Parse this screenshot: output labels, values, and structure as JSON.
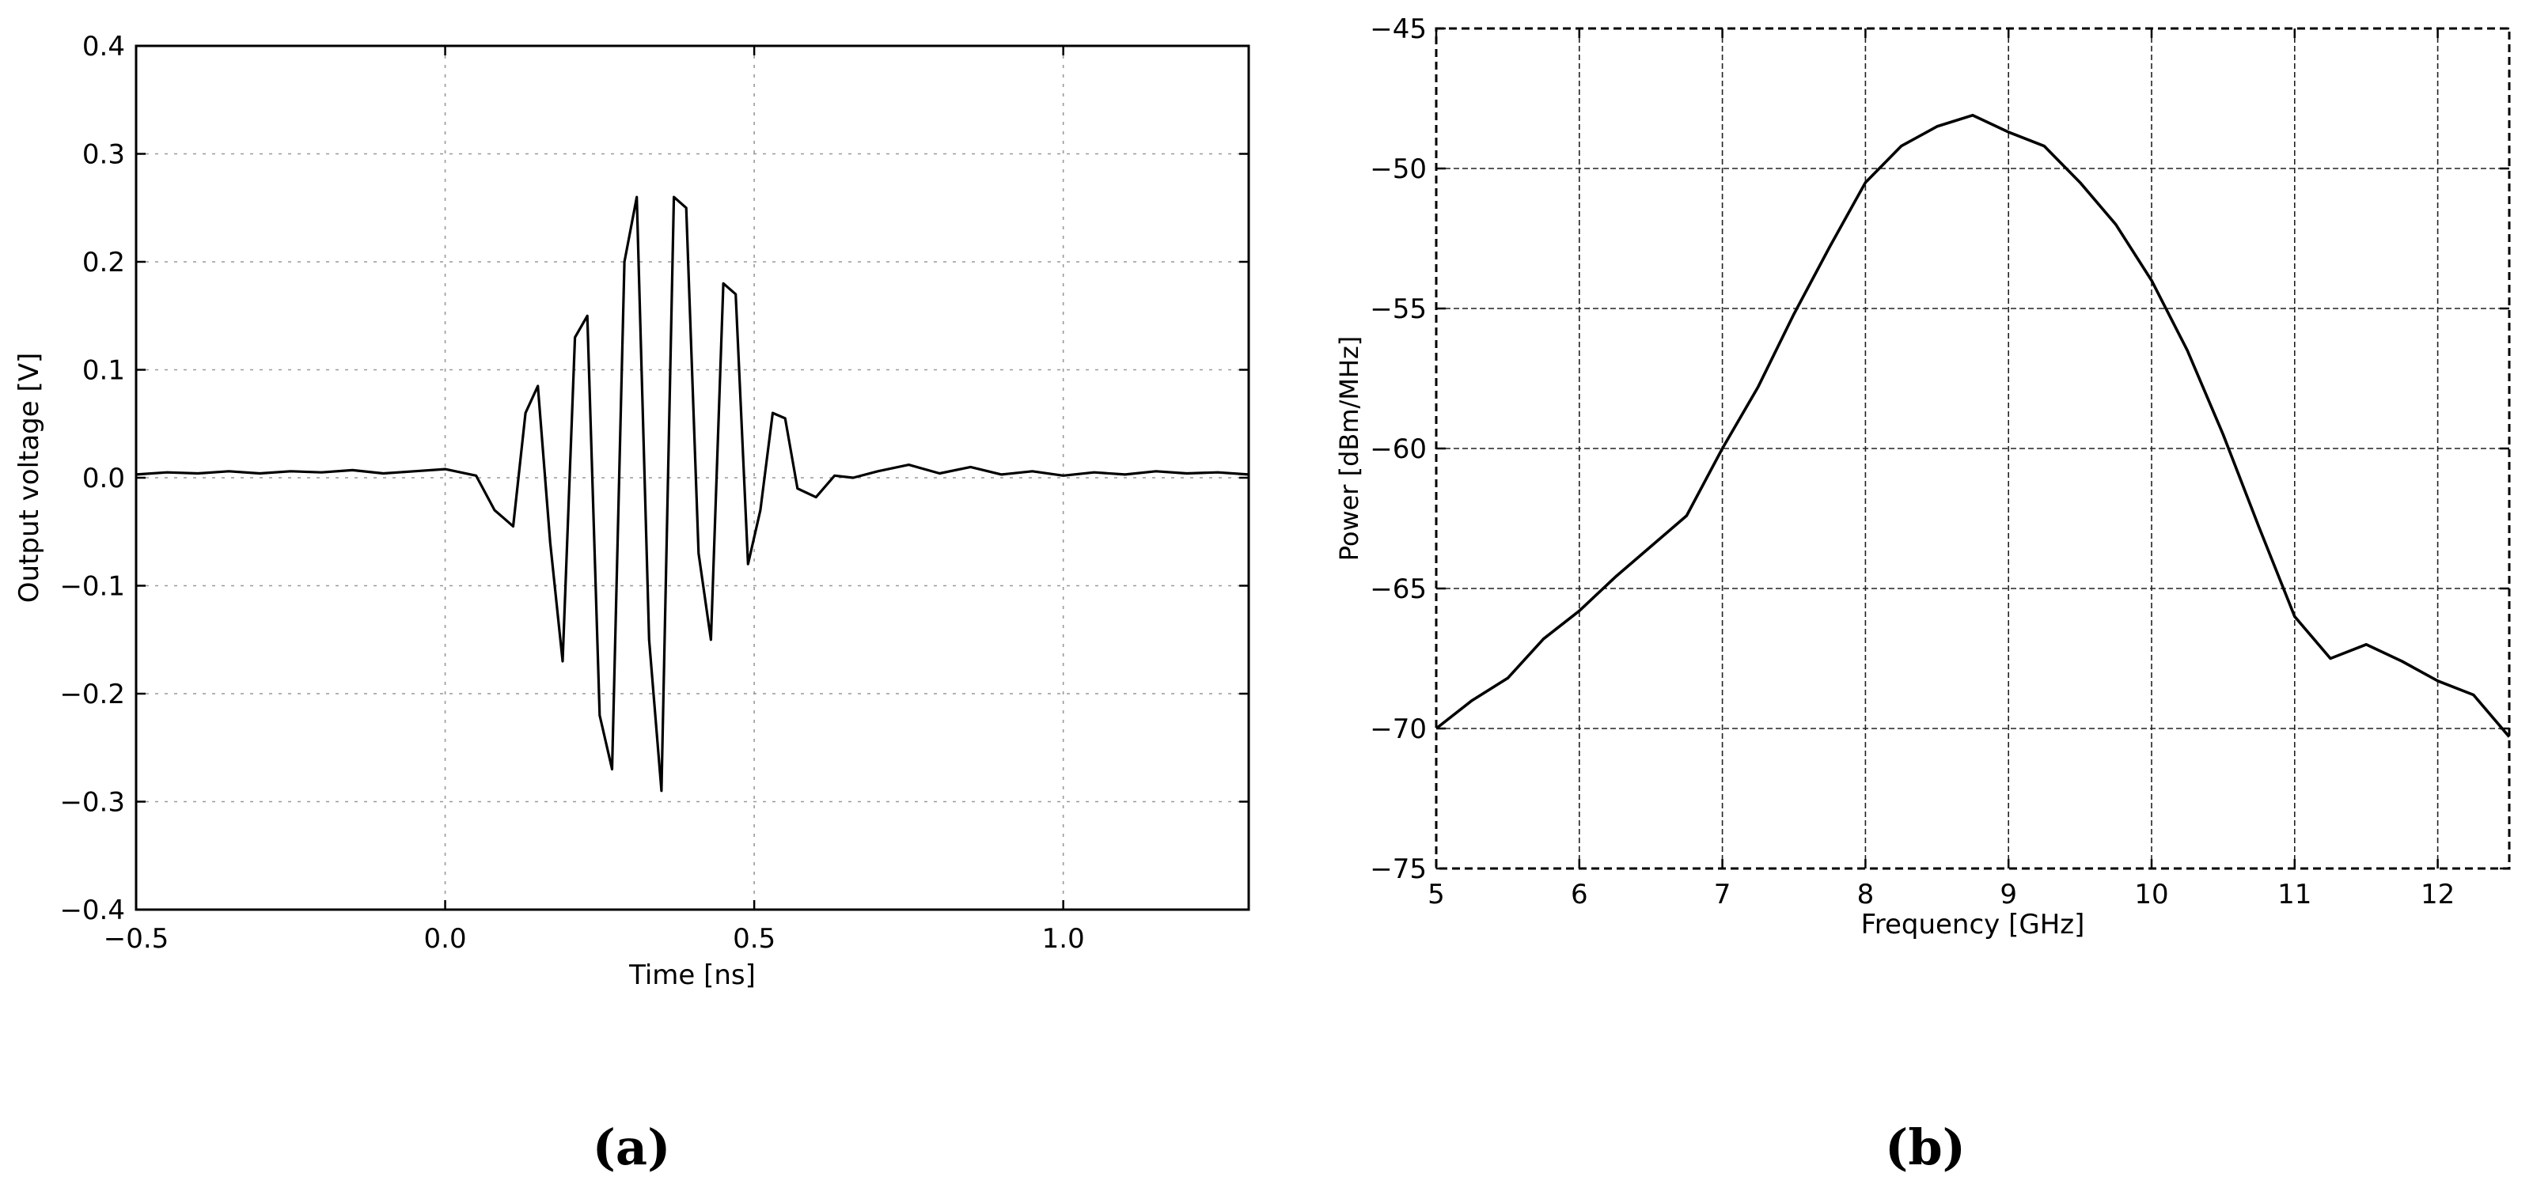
{
  "figure": {
    "panels": [
      {
        "label": "(a)"
      },
      {
        "label": "(b)"
      }
    ]
  },
  "chart_data": [
    {
      "type": "line",
      "panel": "(a)",
      "title": "",
      "xlabel": "Time [ns]",
      "ylabel": "Output voltage [V]",
      "xlim": [
        -0.5,
        1.3
      ],
      "ylim": [
        -0.4,
        0.4
      ],
      "xticks": [
        -0.5,
        0.0,
        0.5,
        1.0
      ],
      "xtick_labels": [
        "−0.5",
        "0.0",
        "0.5",
        "1.0"
      ],
      "yticks": [
        -0.4,
        -0.3,
        -0.2,
        -0.1,
        0.0,
        0.1,
        0.2,
        0.3,
        0.4
      ],
      "ytick_labels": [
        "−0.4",
        "−0.3",
        "−0.2",
        "−0.1",
        "0.0",
        "0.1",
        "0.2",
        "0.3",
        "0.4"
      ],
      "grid": true,
      "line_color": "#000000",
      "series": [
        {
          "x": [
            -0.5,
            -0.45,
            -0.4,
            -0.35,
            -0.3,
            -0.25,
            -0.2,
            -0.15,
            -0.1,
            -0.05,
            0.0,
            0.05,
            0.08,
            0.11,
            0.13,
            0.15,
            0.17,
            0.19,
            0.21,
            0.23,
            0.25,
            0.27,
            0.29,
            0.31,
            0.33,
            0.35,
            0.37,
            0.39,
            0.41,
            0.43,
            0.45,
            0.47,
            0.49,
            0.51,
            0.53,
            0.55,
            0.57,
            0.6,
            0.63,
            0.66,
            0.7,
            0.75,
            0.8,
            0.85,
            0.9,
            0.95,
            1.0,
            1.05,
            1.1,
            1.15,
            1.2,
            1.25,
            1.3
          ],
          "y": [
            0.003,
            0.005,
            0.004,
            0.006,
            0.004,
            0.006,
            0.005,
            0.007,
            0.004,
            0.006,
            0.008,
            0.002,
            -0.03,
            -0.045,
            0.06,
            0.085,
            -0.06,
            -0.17,
            0.13,
            0.15,
            -0.22,
            -0.27,
            0.2,
            0.26,
            -0.15,
            -0.29,
            0.26,
            0.25,
            -0.07,
            -0.15,
            0.18,
            0.17,
            -0.08,
            -0.03,
            0.06,
            0.055,
            -0.01,
            -0.018,
            0.002,
            0.0,
            0.006,
            0.012,
            0.004,
            0.01,
            0.003,
            0.006,
            0.002,
            0.005,
            0.003,
            0.006,
            0.004,
            0.005,
            0.003
          ]
        }
      ]
    },
    {
      "type": "line",
      "panel": "(b)",
      "title": "",
      "xlabel": "Frequency [GHz]",
      "ylabel": "Power [dBm/MHz]",
      "xlim": [
        5,
        12.5
      ],
      "ylim": [
        -75,
        -45
      ],
      "xticks": [
        5,
        6,
        7,
        8,
        9,
        10,
        11,
        12
      ],
      "xtick_labels": [
        "5",
        "6",
        "7",
        "8",
        "9",
        "10",
        "11",
        "12"
      ],
      "yticks": [
        -75,
        -70,
        -65,
        -60,
        -55,
        -50,
        -45
      ],
      "ytick_labels": [
        "−75",
        "−70",
        "−65",
        "−60",
        "−55",
        "−50",
        "−45"
      ],
      "grid": true,
      "line_color": "#000000",
      "series": [
        {
          "x": [
            5.0,
            5.25,
            5.5,
            5.75,
            6.0,
            6.25,
            6.5,
            6.75,
            7.0,
            7.25,
            7.5,
            7.75,
            8.0,
            8.25,
            8.5,
            8.75,
            9.0,
            9.25,
            9.5,
            9.75,
            10.0,
            10.25,
            10.5,
            10.75,
            11.0,
            11.25,
            11.5,
            11.75,
            12.0,
            12.25,
            12.5
          ],
          "y": [
            -70.0,
            -69.0,
            -68.2,
            -66.8,
            -65.8,
            -64.6,
            -63.5,
            -62.4,
            -60.0,
            -57.8,
            -55.2,
            -52.8,
            -50.5,
            -49.2,
            -48.5,
            -48.1,
            -48.7,
            -49.2,
            -50.5,
            -52.0,
            -54.0,
            -56.5,
            -59.5,
            -62.8,
            -66.0,
            -67.5,
            -67.0,
            -67.6,
            -68.3,
            -68.8,
            -70.3
          ]
        }
      ]
    }
  ]
}
